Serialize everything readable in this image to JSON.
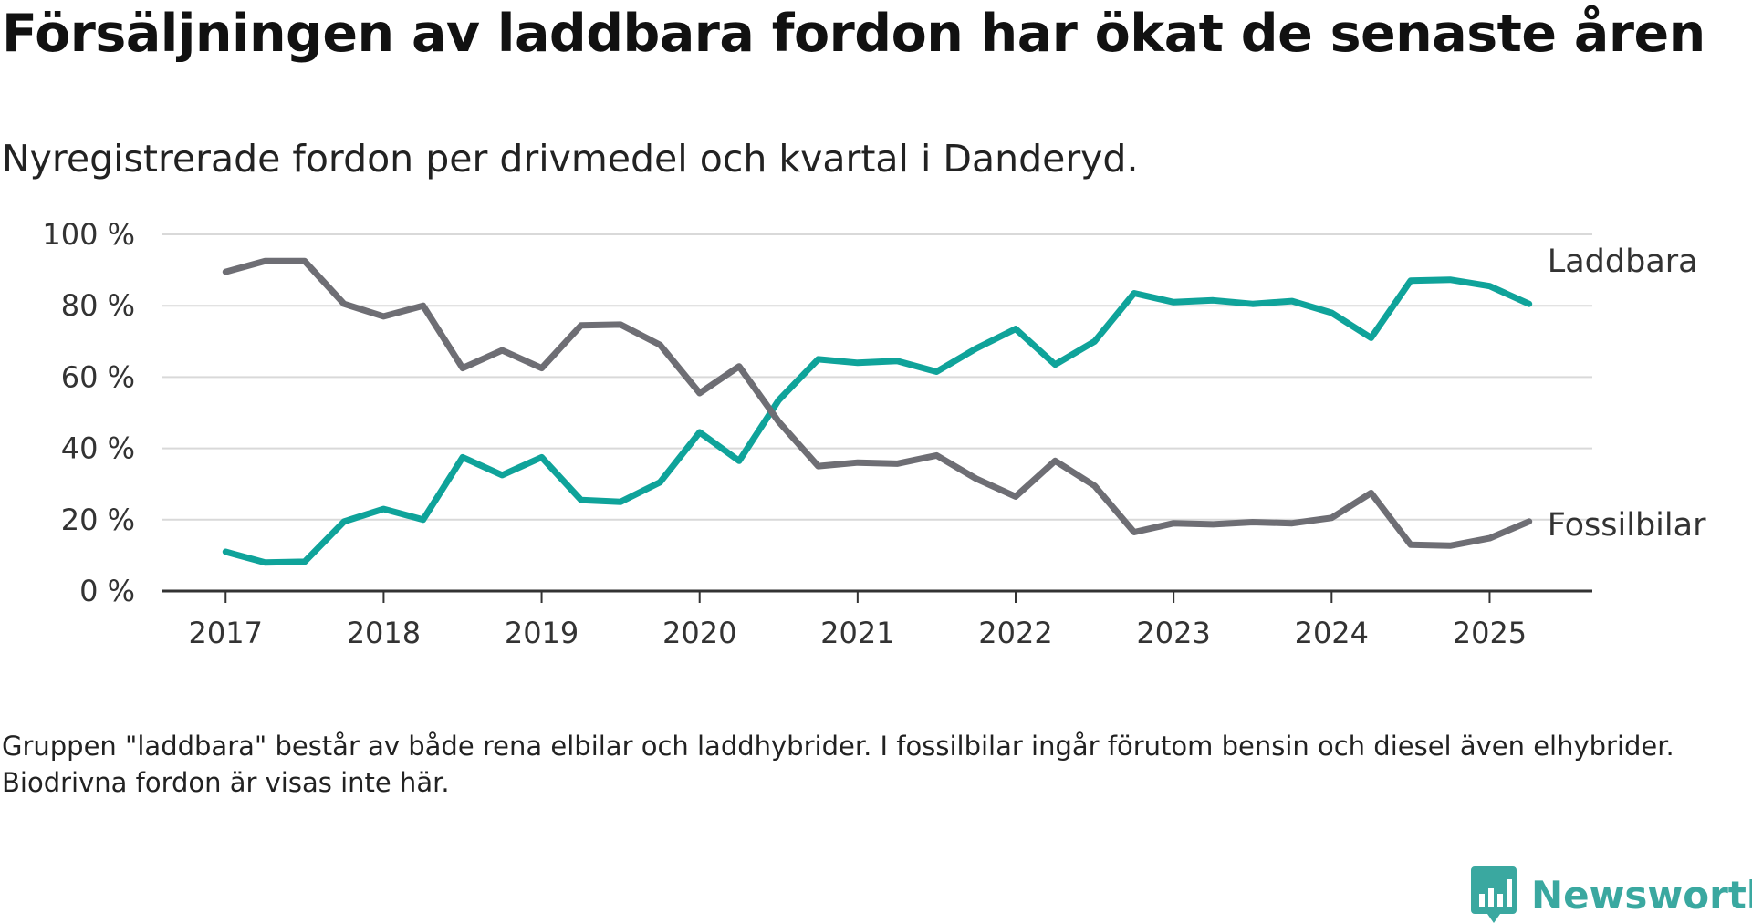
{
  "title": "Försäljningen av laddbara fordon har ökat de senaste åren",
  "subtitle": "Nyregistrerade fordon per drivmedel och kvartal i Danderyd.",
  "note": "Gruppen \"laddbara\" består av både rena elbilar och laddhybrider. I fossilbilar ingår förutom bensin och diesel även elhybrider. Biodrivna fordon är visas inte här.",
  "brand": {
    "name": "Newsworthy",
    "icon": "newsworthy-logo-icon",
    "color": "#3aa8a0"
  },
  "chart_data": {
    "type": "line",
    "x": [
      2017.0,
      2017.25,
      2017.5,
      2017.75,
      2018.0,
      2018.25,
      2018.5,
      2018.75,
      2019.0,
      2019.25,
      2019.5,
      2019.75,
      2020.0,
      2020.25,
      2020.5,
      2020.75,
      2021.0,
      2021.25,
      2021.5,
      2021.75,
      2022.0,
      2022.25,
      2022.5,
      2022.75,
      2023.0,
      2023.25,
      2023.5,
      2023.75,
      2024.0,
      2024.25,
      2024.5,
      2024.75,
      2025.0,
      2025.25
    ],
    "series": [
      {
        "name": "Laddbara",
        "color": "#0fa39a",
        "values": [
          11,
          8,
          8.2,
          19.5,
          23,
          20,
          37.5,
          32.5,
          37.5,
          25.5,
          25,
          30.5,
          44.5,
          36.5,
          53.5,
          65,
          64,
          64.5,
          61.5,
          68,
          73.5,
          63.5,
          70,
          83.5,
          81,
          81.5,
          80.5,
          81.3,
          78,
          71,
          87,
          87.3,
          85.5,
          80.5
        ]
      },
      {
        "name": "Fossilbilar",
        "color": "#6e6e74",
        "values": [
          89.5,
          92.5,
          92.5,
          80.5,
          77,
          80,
          62.5,
          67.5,
          62.5,
          74.5,
          74.7,
          69,
          55.5,
          63,
          47.5,
          35,
          36,
          35.7,
          38,
          31.5,
          26.5,
          36.5,
          29.5,
          16.5,
          19,
          18.7,
          19.3,
          19,
          20.5,
          27.5,
          13,
          12.7,
          14.8,
          19.5
        ]
      }
    ],
    "ylim": [
      0,
      100
    ],
    "y_ticks": [
      0,
      20,
      40,
      60,
      80,
      100
    ],
    "y_tick_labels": [
      "0 %",
      "20 %",
      "40 %",
      "60 %",
      "80 %",
      "100 %"
    ],
    "x_ticks": [
      2017,
      2018,
      2019,
      2020,
      2021,
      2022,
      2023,
      2024,
      2025
    ],
    "x_tick_labels": [
      "2017",
      "2018",
      "2019",
      "2020",
      "2021",
      "2022",
      "2023",
      "2024",
      "2025"
    ],
    "xlim": [
      2016.6,
      2025.65
    ],
    "grid": true,
    "gridline_color": "#d9d9d9",
    "axis_color": "#333333",
    "legend": "inline-right"
  }
}
